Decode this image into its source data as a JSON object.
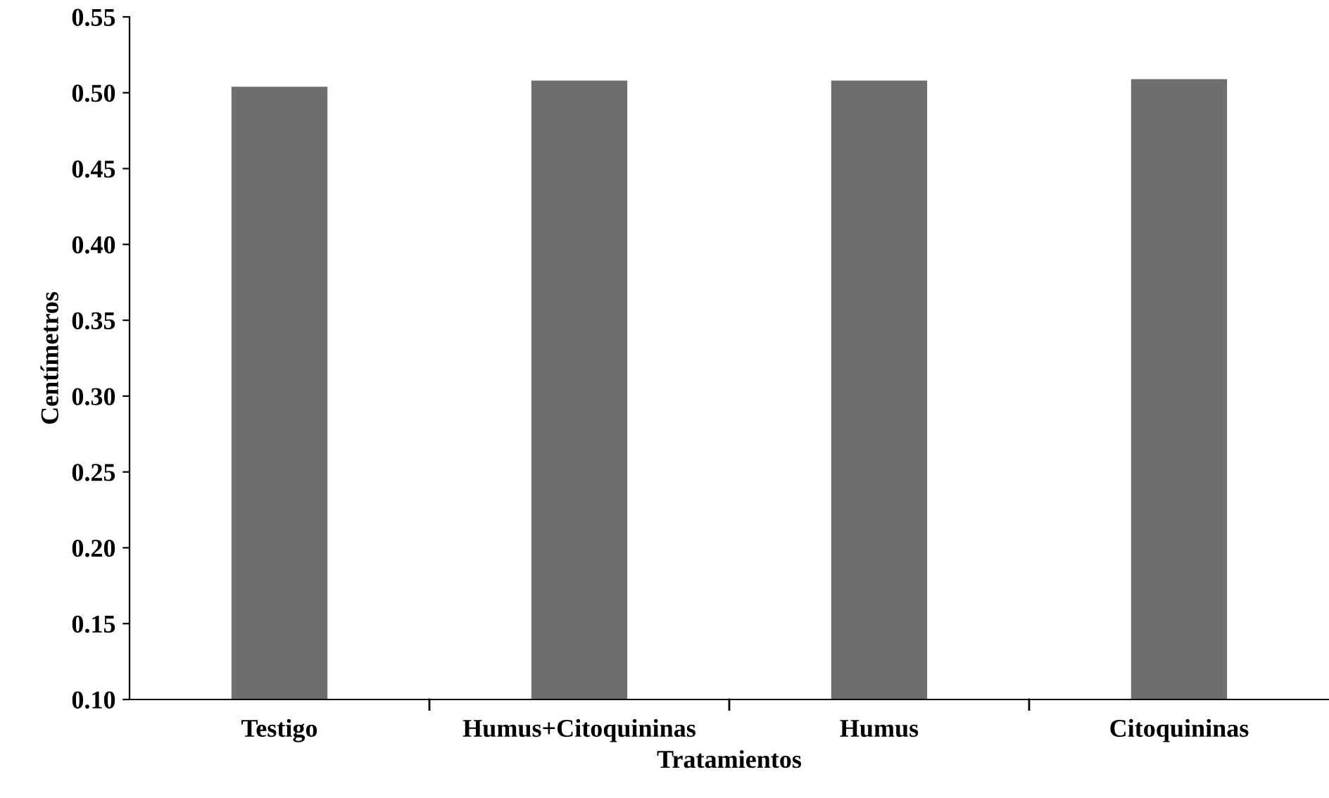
{
  "chart_data": {
    "type": "bar",
    "xlabel": "Tratamientos",
    "ylabel": "Centímetros",
    "categories": [
      "Testigo",
      "Humus+Citoquininas",
      "Humus",
      "Citoquininas"
    ],
    "values": [
      0.504,
      0.508,
      0.508,
      0.509
    ],
    "color": "#6e6e6e",
    "ylim": [
      0.1,
      0.55
    ],
    "yticks": [
      {
        "value": 0.1,
        "label": "0.10"
      },
      {
        "value": 0.15,
        "label": "0.15"
      },
      {
        "value": 0.2,
        "label": "0.20"
      },
      {
        "value": 0.25,
        "label": "0.25"
      },
      {
        "value": 0.3,
        "label": "0.30"
      },
      {
        "value": 0.35,
        "label": "0.35"
      },
      {
        "value": 0.4,
        "label": "0.40"
      },
      {
        "value": 0.45,
        "label": "0.45"
      },
      {
        "value": 0.5,
        "label": "0.50"
      },
      {
        "value": 0.55,
        "label": "0.55"
      }
    ],
    "grid": false,
    "legend": false
  }
}
